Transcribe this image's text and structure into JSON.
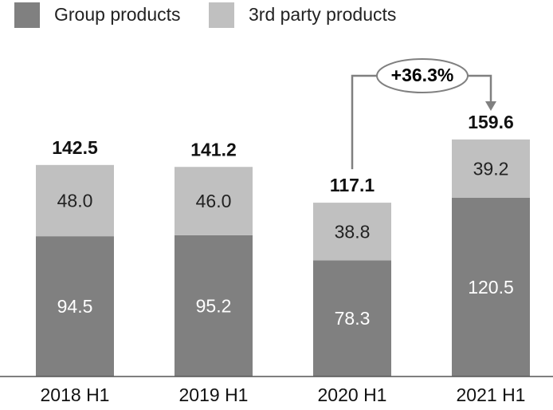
{
  "chart_data": {
    "type": "stacked_bar",
    "categories": [
      "2018 H1",
      "2019 H1",
      "2020 H1",
      "2021 H1"
    ],
    "series": [
      {
        "name": "Group products",
        "color": "#808080",
        "values": [
          94.5,
          95.2,
          78.3,
          120.5
        ],
        "value_labels": [
          "94.5",
          "95.2",
          "78.3",
          "120.5"
        ]
      },
      {
        "name": "3rd party products",
        "color": "#c0c0c0",
        "values": [
          48.0,
          46.0,
          38.8,
          39.2
        ],
        "value_labels": [
          "48.0",
          "46.0",
          "38.8",
          "39.2"
        ]
      }
    ],
    "totals": [
      142.5,
      141.2,
      117.1,
      159.6
    ],
    "annotation": "+36.3%",
    "legend": "top-left"
  }
}
